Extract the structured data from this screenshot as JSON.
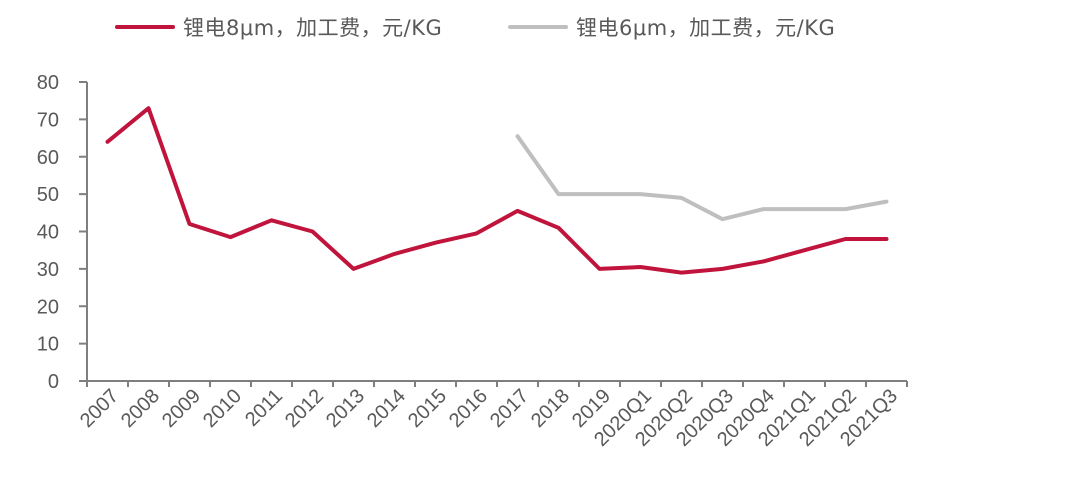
{
  "chart_data": {
    "type": "line",
    "title": "",
    "xlabel": "",
    "ylabel": "",
    "ylim": [
      0,
      80
    ],
    "yticks": [
      0,
      10,
      20,
      30,
      40,
      50,
      60,
      70,
      80
    ],
    "grid": false,
    "legend_position": "top",
    "categories": [
      "2007",
      "2008",
      "2009",
      "2010",
      "2011",
      "2012",
      "2013",
      "2014",
      "2015",
      "2016",
      "2017",
      "2018",
      "2019",
      "2020Q1",
      "2020Q2",
      "2020Q3",
      "2020Q4",
      "2021Q1",
      "2021Q2",
      "2021Q3"
    ],
    "series": [
      {
        "name": "锂电8μm，加工费，元/KG",
        "color": "#C0143C",
        "values": [
          64,
          73,
          42,
          38.5,
          43,
          40,
          30,
          34,
          37,
          39.5,
          45.5,
          41,
          30,
          30.5,
          29,
          30,
          32,
          35,
          38,
          38
        ]
      },
      {
        "name": "锂电6μm，加工费，元/KG",
        "color": "#BFBFBF",
        "values": [
          null,
          null,
          null,
          null,
          null,
          null,
          null,
          null,
          null,
          null,
          65.5,
          50,
          50,
          50,
          49,
          43.3,
          46,
          46,
          46,
          48
        ]
      }
    ]
  },
  "legend": {
    "items": [
      {
        "label": "锂电8μm，加工费，元/KG",
        "color": "#C0143C"
      },
      {
        "label": "锂电6μm，加工费，元/KG",
        "color": "#BFBFBF"
      }
    ]
  }
}
